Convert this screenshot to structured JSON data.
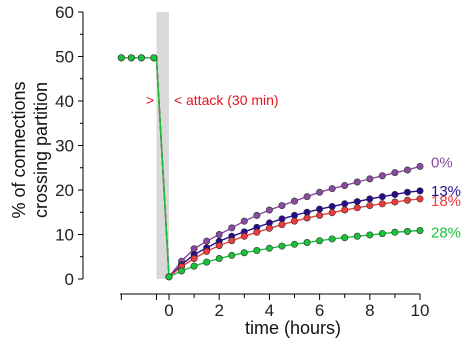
{
  "chart_data": {
    "type": "line",
    "title": "",
    "xlabel": "time (hours)",
    "ylabel_lines": [
      "% of connections",
      "crossing partition"
    ],
    "xlim": [
      -1.9,
      10
    ],
    "ylim": [
      0,
      60
    ],
    "x_ticks": [
      {
        "value": 0,
        "label": "0"
      },
      {
        "value": 2,
        "label": "2"
      },
      {
        "value": 4,
        "label": "4"
      },
      {
        "value": 6,
        "label": "6"
      },
      {
        "value": 8,
        "label": "8"
      },
      {
        "value": 10,
        "label": "10"
      }
    ],
    "x_minor_ticks": [
      -1.9,
      -0.5
    ],
    "y_ticks": [
      {
        "value": 0,
        "label": "0"
      },
      {
        "value": 10,
        "label": "10"
      },
      {
        "value": 20,
        "label": "20"
      },
      {
        "value": 30,
        "label": "30"
      },
      {
        "value": 40,
        "label": "40"
      },
      {
        "value": 50,
        "label": "50"
      },
      {
        "value": 60,
        "label": "60"
      }
    ],
    "grid": false,
    "attack_window": {
      "x_start": -0.5,
      "x_end": 0,
      "label": "attack (30 min)",
      "left_marker": ">",
      "right_marker": "< ",
      "y": 40,
      "color": "#e8141e"
    },
    "pre_attack_x": [
      -1.9,
      -1.5,
      -1.1,
      -0.6
    ],
    "pre_attack_value": 49.7,
    "post_x": [
      0,
      0.5,
      1,
      1.5,
      2,
      2.5,
      3,
      3.5,
      4,
      4.5,
      5,
      5.5,
      6,
      6.5,
      7,
      7.5,
      8,
      8.5,
      9,
      9.5,
      10
    ],
    "series": [
      {
        "name": "0%",
        "color": "#8a4aa0",
        "values": [
          0.5,
          4,
          6.8,
          8.5,
          10,
          11.5,
          13,
          14.3,
          15.5,
          16.5,
          17.5,
          18.5,
          19.5,
          20.3,
          21,
          21.8,
          22.5,
          23.2,
          23.9,
          24.5,
          25.3
        ]
      },
      {
        "name": "13%",
        "color": "#2a0a8c",
        "values": [
          0.5,
          3.2,
          5.5,
          7,
          8.5,
          9.6,
          10.6,
          11.6,
          12.6,
          13.5,
          14.3,
          15,
          15.7,
          16.3,
          16.9,
          17.4,
          18,
          18.5,
          19,
          19.5,
          19.8
        ]
      },
      {
        "name": "18%",
        "color": "#ee3a3a",
        "values": [
          0.5,
          2.8,
          4.6,
          6.2,
          7.5,
          8.6,
          9.6,
          10.5,
          11.4,
          12.2,
          13,
          13.7,
          14.3,
          14.9,
          15.5,
          16,
          16.5,
          16.9,
          17.3,
          17.7,
          18
        ]
      },
      {
        "name": "28%",
        "color": "#19c23a",
        "values": [
          0.5,
          1.8,
          2.9,
          3.8,
          4.6,
          5.3,
          5.9,
          6.4,
          6.9,
          7.4,
          7.8,
          8.2,
          8.6,
          9,
          9.3,
          9.6,
          9.9,
          10.2,
          10.5,
          10.7,
          10.9
        ]
      }
    ]
  }
}
